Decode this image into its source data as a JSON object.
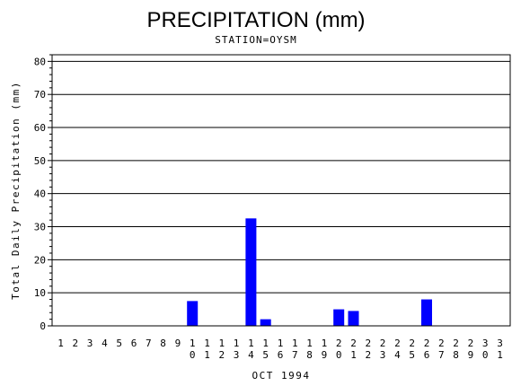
{
  "chart_data": {
    "type": "bar",
    "title": "PRECIPITATION (mm)",
    "subtitle": "STATION=OYSM",
    "xlabel": "OCT 1994",
    "ylabel": "Total Daily Precipitation (mm)",
    "ylim": [
      0,
      82
    ],
    "yticks": [
      0,
      10,
      20,
      30,
      40,
      50,
      60,
      70,
      80
    ],
    "grid": true,
    "bar_color": "#0000ff",
    "categories": [
      "1",
      "2",
      "3",
      "4",
      "5",
      "6",
      "7",
      "8",
      "9",
      "10",
      "11",
      "12",
      "13",
      "14",
      "15",
      "16",
      "17",
      "18",
      "19",
      "20",
      "21",
      "22",
      "23",
      "24",
      "25",
      "26",
      "27",
      "28",
      "29",
      "30",
      "31"
    ],
    "values": [
      0,
      0,
      0,
      0,
      0,
      0,
      0,
      0,
      0,
      7.5,
      0,
      0,
      0,
      32.5,
      2,
      0,
      0,
      0,
      0,
      5,
      4.5,
      0,
      0,
      0,
      0,
      8,
      0,
      0,
      0,
      0,
      0
    ]
  }
}
